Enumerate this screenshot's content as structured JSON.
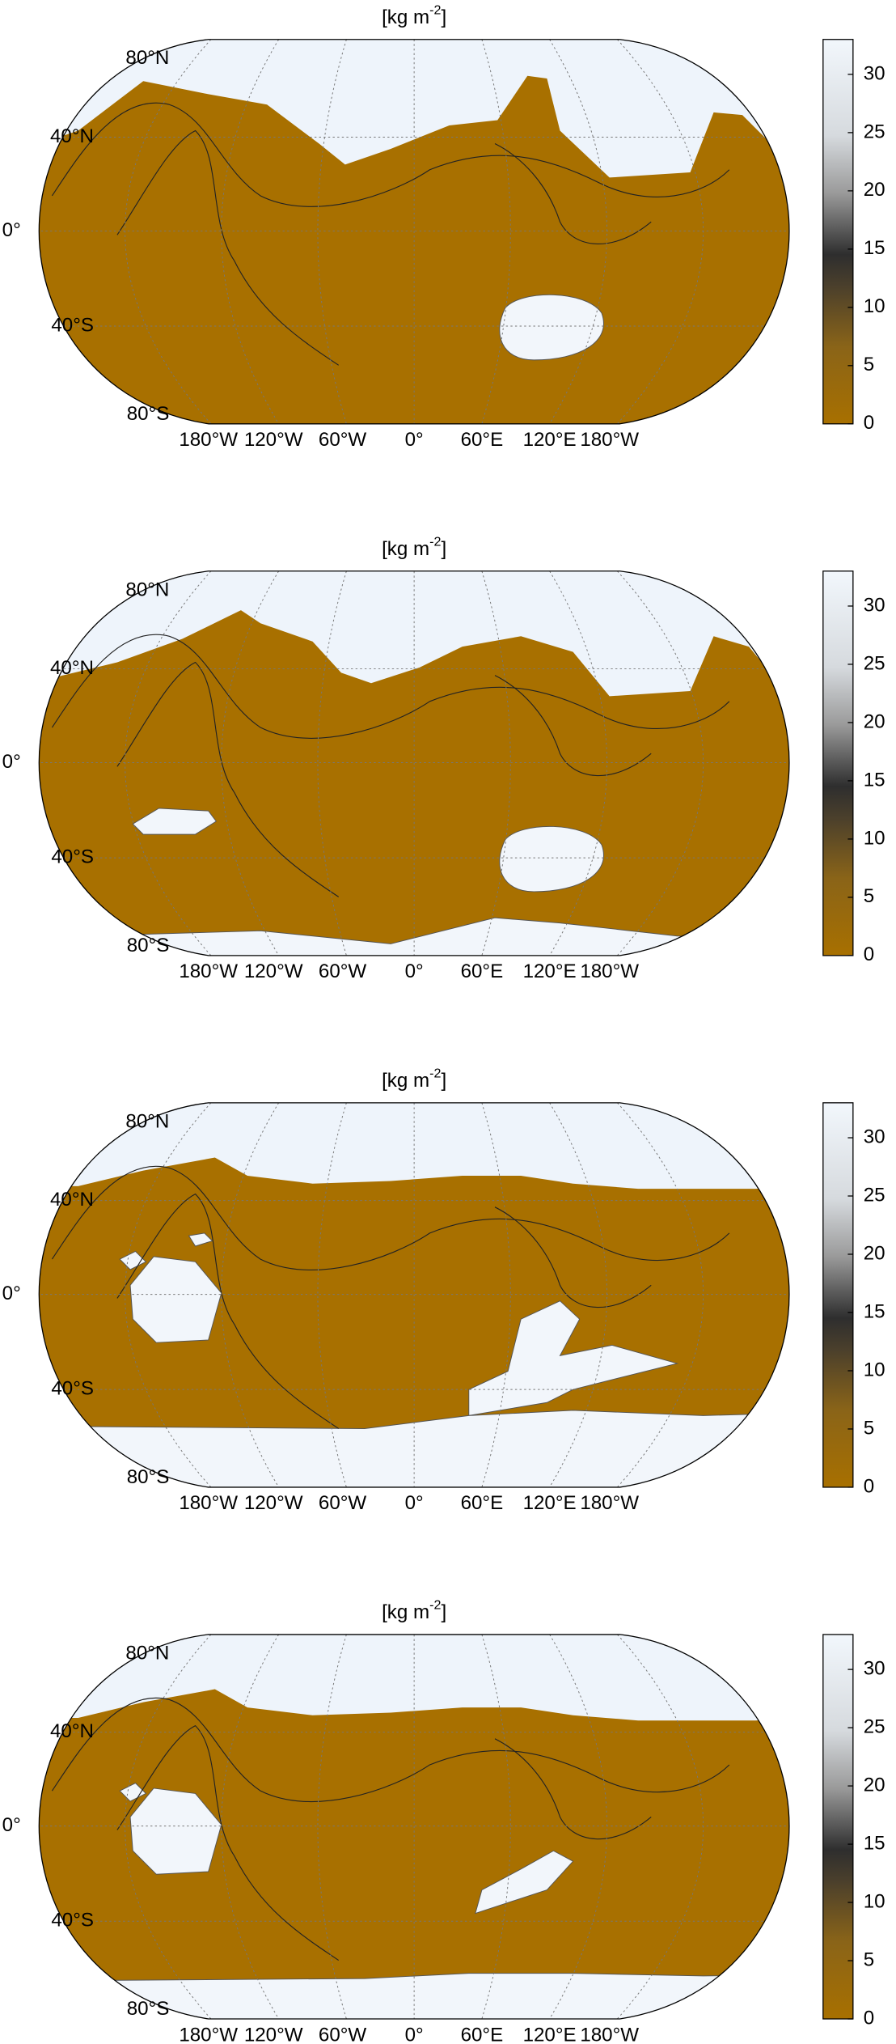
{
  "panels": [
    {
      "title": [
        "[kg m",
        "-2",
        "]"
      ],
      "lat_labels": [
        "80°N",
        "40°N",
        "0°",
        "40°S",
        "80°S"
      ],
      "lon_labels": [
        "180°W",
        "120°W",
        "60°W",
        "0°",
        "60°E",
        "120°E",
        "180°W"
      ],
      "colorbar": {
        "lim": [
          0,
          33
        ],
        "ticks": [
          0,
          5,
          10,
          15,
          20,
          25,
          30
        ]
      }
    },
    {
      "title": [
        "[kg m",
        "-2",
        "]"
      ],
      "lat_labels": [
        "80°N",
        "40°N",
        "0°",
        "40°S",
        "80°S"
      ],
      "lon_labels": [
        "180°W",
        "120°W",
        "60°W",
        "0°",
        "60°E",
        "120°E",
        "180°W"
      ],
      "colorbar": {
        "lim": [
          0,
          33
        ],
        "ticks": [
          0,
          5,
          10,
          15,
          20,
          25,
          30
        ]
      }
    },
    {
      "title": [
        "[kg m",
        "-2",
        "]"
      ],
      "lat_labels": [
        "80°N",
        "40°N",
        "0°",
        "40°S",
        "80°S"
      ],
      "lon_labels": [
        "180°W",
        "120°W",
        "60°W",
        "0°",
        "60°E",
        "120°E",
        "180°W"
      ],
      "colorbar": {
        "lim": [
          0,
          33
        ],
        "ticks": [
          0,
          5,
          10,
          15,
          20,
          25,
          30
        ]
      }
    },
    {
      "title": [
        "[kg m",
        "-2",
        "]"
      ],
      "lat_labels": [
        "80°N",
        "40°N",
        "0°",
        "40°S",
        "80°S"
      ],
      "lon_labels": [
        "180°W",
        "120°W",
        "60°W",
        "0°",
        "60°E",
        "120°E",
        "180°W"
      ],
      "colorbar": {
        "lim": [
          0,
          33
        ],
        "ticks": [
          0,
          5,
          10,
          15,
          20,
          25,
          30
        ]
      }
    }
  ]
}
